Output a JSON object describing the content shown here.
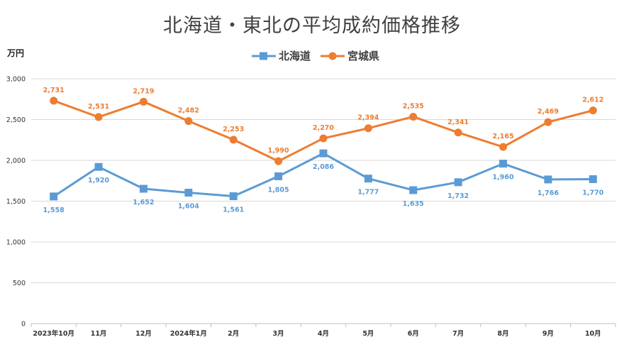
{
  "chart_data": {
    "type": "line",
    "title": "北海道・東北の平均成約価格推移",
    "ylabel": "万円",
    "xlabel": "",
    "categories": [
      "2023年10月",
      "11月",
      "12月",
      "2024年1月",
      "2月",
      "3月",
      "4月",
      "5月",
      "6月",
      "7月",
      "8月",
      "9月",
      "10月"
    ],
    "ylim": [
      0,
      3000
    ],
    "yticks": [
      "0",
      "500",
      "1,000",
      "1,500",
      "2,000",
      "2,500",
      "3,000"
    ],
    "ytick_values": [
      0,
      500,
      1000,
      1500,
      2000,
      2500,
      3000
    ],
    "grid": true,
    "legend_position": "top",
    "series": [
      {
        "name": "北海道",
        "color": "#5B9BD5",
        "marker": "square",
        "values": [
          1558,
          1920,
          1652,
          1604,
          1561,
          1805,
          2086,
          1777,
          1635,
          1732,
          1960,
          1766,
          1770
        ],
        "labels": [
          "1,558",
          "1,920",
          "1,652",
          "1,604",
          "1,561",
          "1,805",
          "2,086",
          "1,777",
          "1,635",
          "1,732",
          "1,960",
          "1,766",
          "1,770"
        ]
      },
      {
        "name": "宮城県",
        "color": "#ED7D31",
        "marker": "circle",
        "values": [
          2731,
          2531,
          2719,
          2482,
          2253,
          1990,
          2270,
          2394,
          2535,
          2341,
          2165,
          2469,
          2612
        ],
        "labels": [
          "2,731",
          "2,531",
          "2,719",
          "2,482",
          "2,253",
          "1,990",
          "2,270",
          "2,394",
          "2,535",
          "2,341",
          "2,165",
          "2,469",
          "2,612"
        ]
      }
    ]
  }
}
